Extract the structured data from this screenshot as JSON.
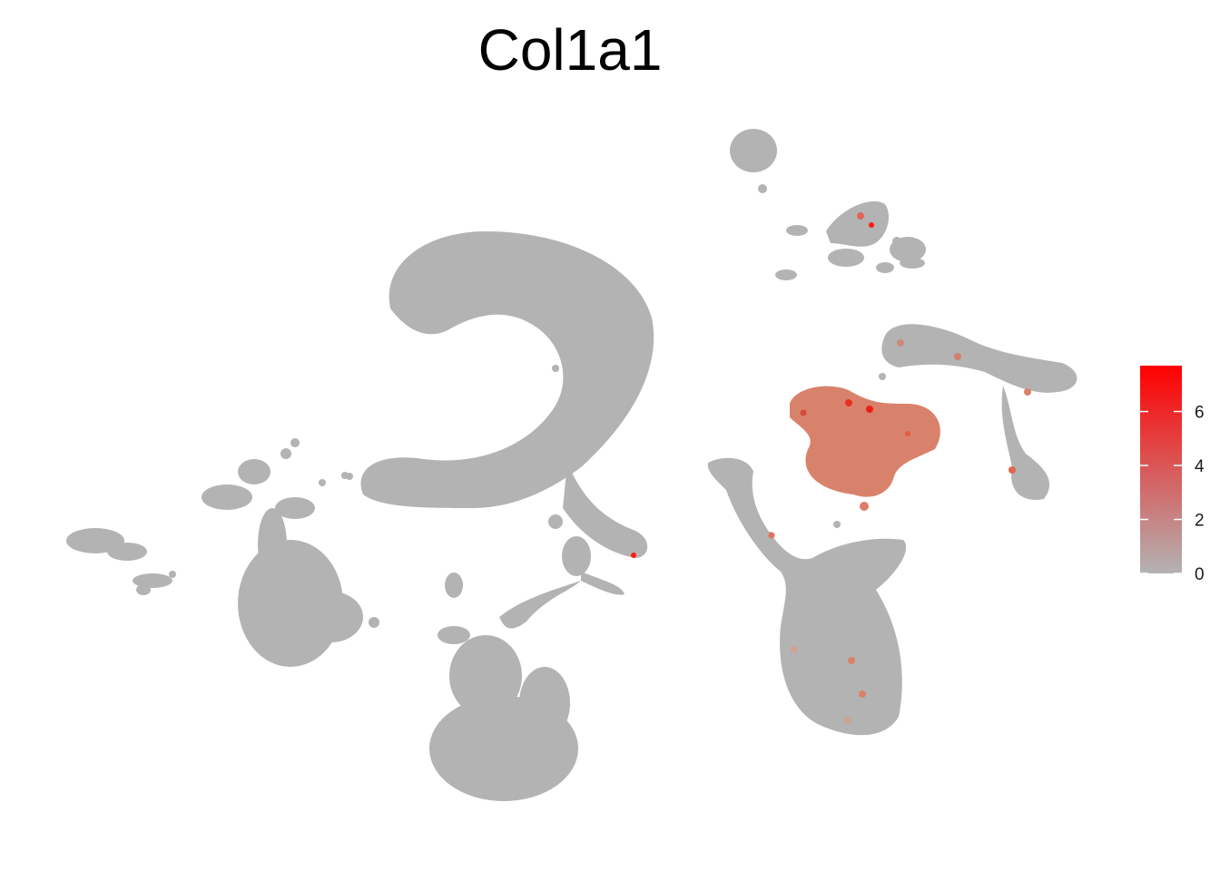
{
  "chart_data": {
    "type": "scatter",
    "title": "Col1a1",
    "xlabel": "",
    "ylabel": "",
    "grid": false,
    "legend_position": "right",
    "point_color_low": "#b3b3b3",
    "point_color_high": "#ff0000",
    "colorbar": {
      "min": 0,
      "max": 7.7,
      "ticks": [
        0,
        2,
        4,
        6
      ],
      "tick_labels": [
        "0",
        "2",
        "4",
        "6"
      ],
      "low_color": "#b3b3b3",
      "high_color": "#ff0000"
    },
    "clusters": [
      {
        "id": "far-left-small",
        "expression": 0
      },
      {
        "id": "left-large",
        "expression": 0
      },
      {
        "id": "crescent-upper",
        "expression": 0
      },
      {
        "id": "center-bottom",
        "expression": 0
      },
      {
        "id": "center-bridge",
        "expression": 0
      },
      {
        "id": "top-right-small",
        "expression": 0
      },
      {
        "id": "top-right-ring",
        "expression": 0.4
      },
      {
        "id": "right-elongated",
        "expression": 0.5
      },
      {
        "id": "fibroblast-col1a1-high",
        "expression": 3.2
      },
      {
        "id": "right-bottom-large",
        "expression": 0.05
      }
    ]
  }
}
